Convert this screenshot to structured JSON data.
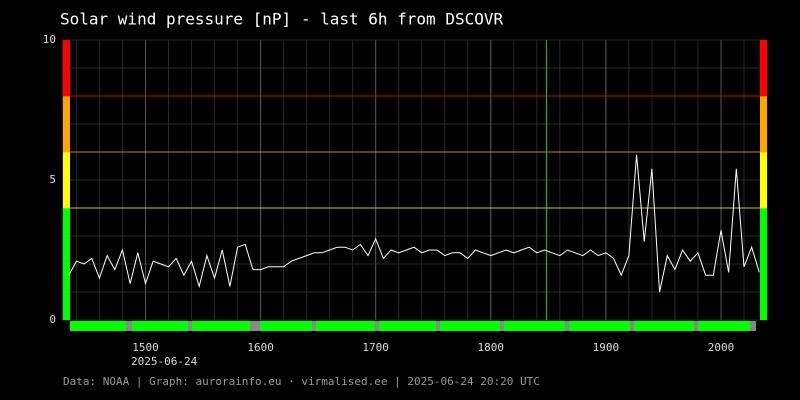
{
  "chart_data": {
    "type": "line",
    "title": "Solar wind pressure [nP] - last 6h from DSCOVR",
    "date_label": "2025-06-24",
    "footer": "Data: NOAA | Graph: aurorainfo.eu · virmalised.ee | 2025-06-24 20:20 UTC",
    "x": [
      860,
      864,
      868,
      872,
      876,
      880,
      884,
      888,
      892,
      896,
      900,
      904,
      908,
      912,
      916,
      920,
      924,
      928,
      932,
      936,
      940,
      944,
      948,
      952,
      956,
      960,
      964,
      968,
      972,
      976,
      980,
      984,
      988,
      992,
      996,
      1000,
      1004,
      1008,
      1012,
      1016,
      1020,
      1024,
      1028,
      1032,
      1036,
      1040,
      1044,
      1048,
      1052,
      1056,
      1060,
      1064,
      1068,
      1072,
      1076,
      1080,
      1084,
      1088,
      1092,
      1096,
      1100,
      1104,
      1108,
      1112,
      1116,
      1120,
      1124,
      1128,
      1132,
      1136,
      1140,
      1144,
      1148,
      1152,
      1156,
      1160,
      1164,
      1168,
      1172,
      1176,
      1180,
      1184,
      1188,
      1192,
      1196,
      1200,
      1204,
      1208,
      1212,
      1216,
      1220
    ],
    "series": [
      {
        "name": "Pressure",
        "color": "#ffffff",
        "values": [
          1.6,
          2.1,
          2.0,
          2.2,
          1.5,
          2.3,
          1.8,
          2.5,
          1.3,
          2.4,
          1.3,
          2.1,
          2.0,
          1.9,
          2.2,
          1.6,
          2.1,
          1.2,
          2.3,
          1.5,
          2.5,
          1.2,
          2.6,
          2.7,
          1.8,
          1.8,
          1.9,
          1.9,
          1.9,
          2.1,
          2.2,
          2.3,
          2.4,
          2.4,
          2.5,
          2.6,
          2.6,
          2.5,
          2.7,
          2.3,
          2.9,
          2.2,
          2.5,
          2.4,
          2.5,
          2.6,
          2.4,
          2.5,
          2.5,
          2.3,
          2.4,
          2.4,
          2.2,
          2.5,
          2.4,
          2.3,
          2.4,
          2.5,
          2.4,
          2.5,
          2.6,
          2.4,
          2.5,
          2.4,
          2.3,
          2.5,
          2.4,
          2.3,
          2.5,
          2.3,
          2.4,
          2.2,
          1.6,
          2.3,
          5.9,
          2.8,
          5.4,
          1.0,
          2.3,
          1.8,
          2.5,
          2.1,
          2.4,
          1.6,
          1.6,
          3.2,
          1.7,
          5.4,
          1.9,
          2.6,
          1.7
        ]
      }
    ],
    "xlim": [
      857,
      1224
    ],
    "xticks": [
      {
        "value": 900,
        "label": "1500"
      },
      {
        "value": 960,
        "label": "1600"
      },
      {
        "value": 1020,
        "label": "1700"
      },
      {
        "value": 1080,
        "label": "1800"
      },
      {
        "value": 1140,
        "label": "1900"
      },
      {
        "value": 1200,
        "label": "2000"
      }
    ],
    "ylim": [
      0,
      10
    ],
    "yticks": [
      0,
      5,
      10
    ],
    "marker_x": 1109,
    "marker_color": "#22cc22",
    "thresholds": [
      {
        "value": 4,
        "color": "#ffff00"
      },
      {
        "value": 6,
        "color": "#ffa500"
      },
      {
        "value": 8,
        "color": "#ff0000"
      }
    ],
    "bands": [
      {
        "from": 0,
        "to": 4,
        "color": "#00ff00"
      },
      {
        "from": 4,
        "to": 6,
        "color": "#ffff00"
      },
      {
        "from": 6,
        "to": 8,
        "color": "#ffa500"
      },
      {
        "from": 8,
        "to": 10,
        "color": "#ff0000"
      }
    ],
    "grid": true
  }
}
